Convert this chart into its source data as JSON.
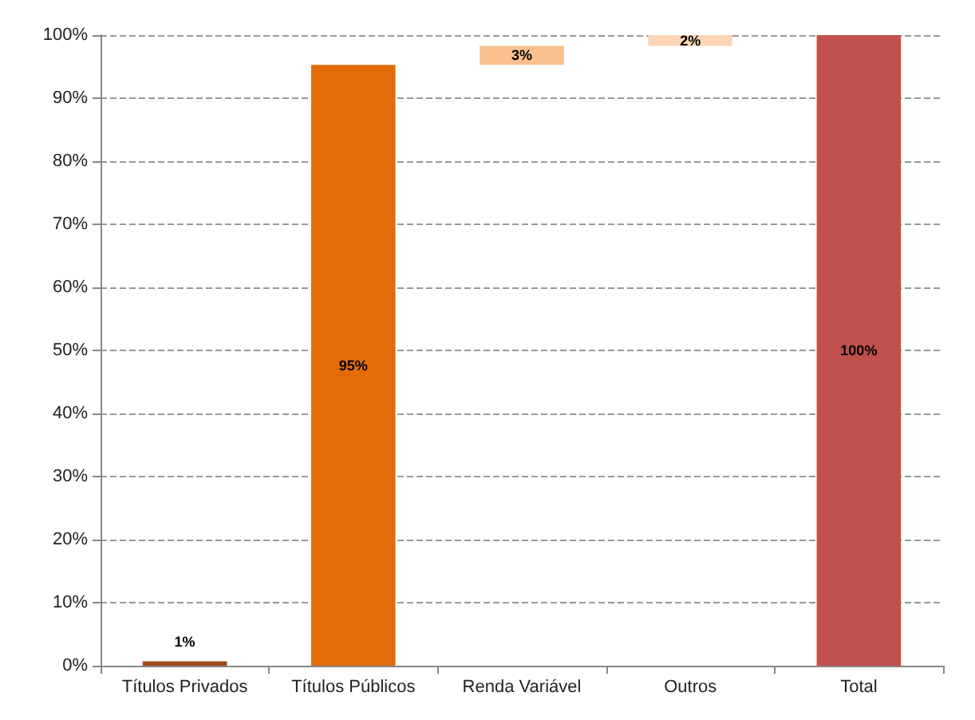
{
  "chart_data": {
    "type": "bar",
    "categories": [
      "Títulos Privados",
      "Títulos Públicos",
      "Renda Variável",
      "Outros",
      "Total"
    ],
    "base": [
      0,
      0,
      95.3,
      98.3,
      0
    ],
    "values": [
      0.7,
      95.3,
      3,
      1.7,
      100
    ],
    "colors": [
      "#9c4a1a",
      "#e36c09",
      "#fac090",
      "#fcd5b5",
      "#c0504d"
    ],
    "value_labels": [
      "1%",
      "95%",
      "3%",
      "2%",
      "100%"
    ],
    "ylim": [
      0,
      100
    ],
    "yticks": [
      {
        "value": 0,
        "label": "0%"
      },
      {
        "value": 10,
        "label": "10%"
      },
      {
        "value": 20,
        "label": "20%"
      },
      {
        "value": 30,
        "label": "30%"
      },
      {
        "value": 40,
        "label": "40%"
      },
      {
        "value": 50,
        "label": "50%"
      },
      {
        "value": 60,
        "label": "60%"
      },
      {
        "value": 70,
        "label": "70%"
      },
      {
        "value": 80,
        "label": "80%"
      },
      {
        "value": 90,
        "label": "90%"
      },
      {
        "value": 100,
        "label": "100%"
      }
    ],
    "grid": "y"
  }
}
